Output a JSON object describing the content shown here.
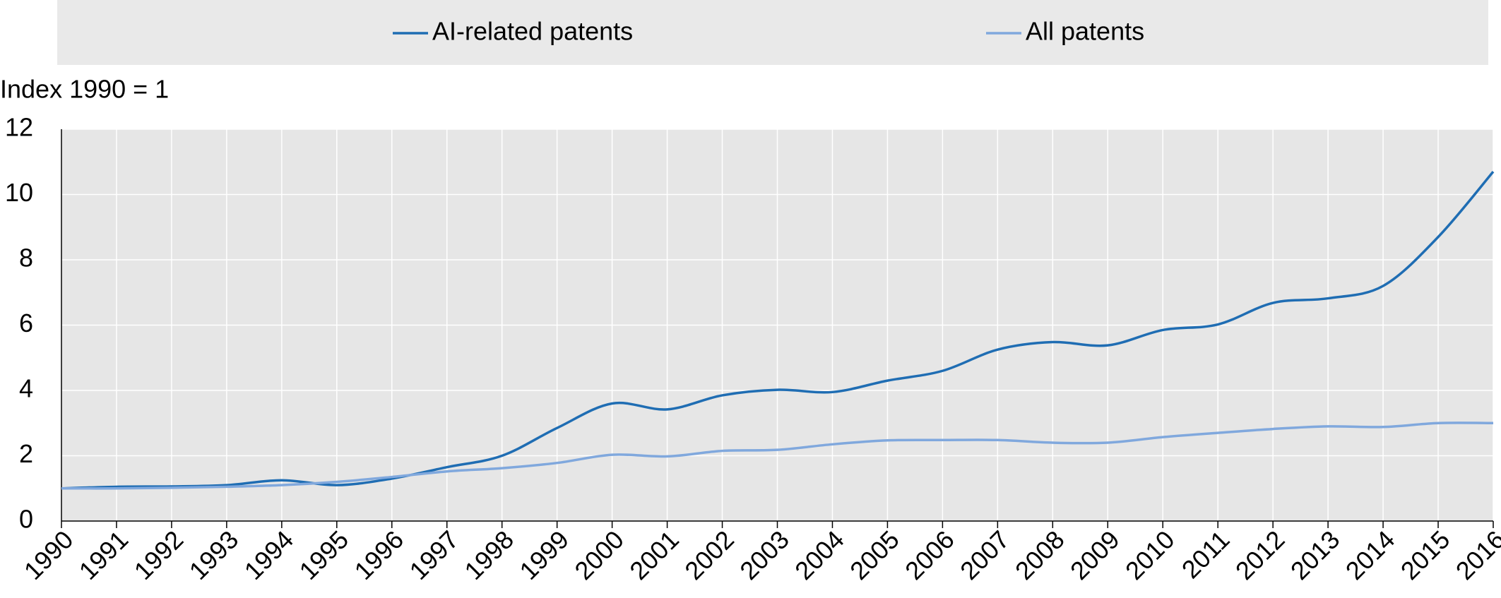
{
  "chart_data": {
    "type": "line",
    "y_label": "Index 1990 = 1",
    "categories": [
      "1990",
      "1991",
      "1992",
      "1993",
      "1994",
      "1995",
      "1996",
      "1997",
      "1998",
      "1999",
      "2000",
      "2001",
      "2002",
      "2003",
      "2004",
      "2005",
      "2006",
      "2007",
      "2008",
      "2009",
      "2010",
      "2011",
      "2012",
      "2013",
      "2014",
      "2015",
      "2016"
    ],
    "series": [
      {
        "name": "AI-related patents",
        "color": "#1f6db3",
        "values": [
          1,
          1.05,
          1.06,
          1.1,
          1.25,
          1.1,
          1.3,
          1.65,
          2.0,
          2.85,
          3.6,
          3.42,
          3.85,
          4.02,
          3.95,
          4.3,
          4.6,
          5.25,
          5.48,
          5.38,
          5.85,
          6.02,
          6.68,
          6.82,
          7.2,
          8.7,
          10.7
        ]
      },
      {
        "name": "All patents",
        "color": "#80a8dd",
        "values": [
          1,
          1,
          1.02,
          1.05,
          1.1,
          1.2,
          1.35,
          1.52,
          1.62,
          1.78,
          2.03,
          1.98,
          2.15,
          2.18,
          2.35,
          2.47,
          2.48,
          2.48,
          2.4,
          2.4,
          2.57,
          2.7,
          2.82,
          2.9,
          2.88,
          3.0,
          3.0
        ]
      }
    ],
    "ylim": [
      0,
      12
    ],
    "yticks": [
      0,
      2,
      4,
      6,
      8,
      10,
      12
    ],
    "grid": true
  }
}
